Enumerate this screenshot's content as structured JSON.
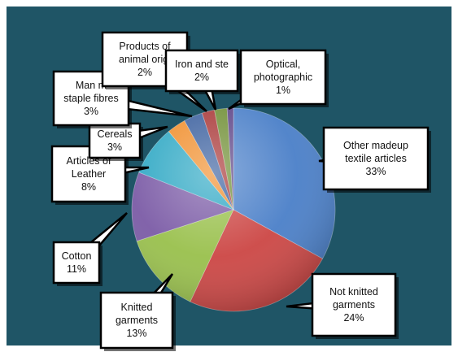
{
  "chart_data": {
    "type": "pie",
    "title": "",
    "slices": [
      {
        "label": "Other madeup textile articles",
        "text_lines": [
          "Other madeup",
          "textile articles"
        ],
        "value": 33,
        "display": "33%",
        "color": "#4a7fc8"
      },
      {
        "label": "Not knitted garments",
        "text_lines": [
          "Not knitted",
          "garments"
        ],
        "value": 24,
        "display": "24%",
        "color": "#cc4644"
      },
      {
        "label": "Knitted garments",
        "text_lines": [
          "Knitted",
          "garments"
        ],
        "value": 13,
        "display": "13%",
        "color": "#99c04c"
      },
      {
        "label": "Cotton",
        "text_lines": [
          "Cotton"
        ],
        "value": 11,
        "display": "11%",
        "color": "#7b5ba6"
      },
      {
        "label": "Articles of Leather",
        "text_lines": [
          "Articles of",
          "Leather"
        ],
        "value": 8,
        "display": "8%",
        "color": "#2fa8c4"
      },
      {
        "label": "Cereals",
        "text_lines": [
          "Cereals"
        ],
        "value": 3,
        "display": "3%",
        "color": "#f08e2c"
      },
      {
        "label": "Man made staple fibres",
        "text_lines": [
          "Man m",
          "staple fibres"
        ],
        "value": 3,
        "display": "3%",
        "color": "#3a5f9e"
      },
      {
        "label": "Products of animal origin",
        "text_lines": [
          "Products of",
          "animal origi"
        ],
        "value": 2,
        "display": "2%",
        "color": "#a83636"
      },
      {
        "label": "Iron and steel",
        "text_lines": [
          "Iron and ste"
        ],
        "value": 2,
        "display": "2%",
        "color": "#6f8e34"
      },
      {
        "label": "Optical, photographic",
        "text_lines": [
          "Optical,",
          "photographic"
        ],
        "value": 1,
        "display": "1%",
        "color": "#5c4386"
      }
    ]
  },
  "colors": {
    "background": "#1f5566",
    "callout_fill": "#ffffff",
    "callout_border": "#000000"
  }
}
